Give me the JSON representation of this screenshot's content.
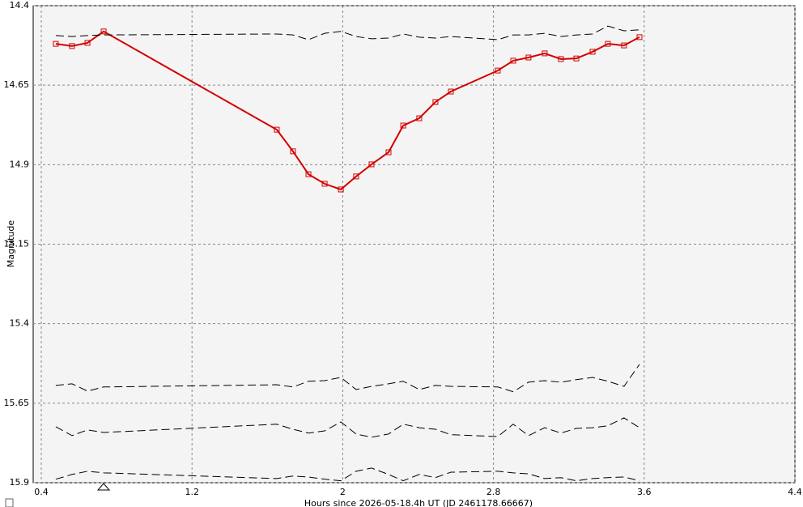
{
  "chart_data": {
    "type": "line",
    "y_label": "Magnitude",
    "x_label": "Hours since 2026-05-18.4h UT (JD 2461178.66667)",
    "x": [
      0.477,
      0.563,
      0.645,
      0.731,
      1.65,
      1.736,
      1.818,
      1.904,
      1.99,
      2.071,
      2.153,
      2.243,
      2.321,
      2.406,
      2.492,
      2.574,
      2.823,
      2.905,
      2.986,
      3.072,
      3.158,
      3.24,
      3.326,
      3.407,
      3.493,
      3.575
    ],
    "series": [
      {
        "color": "#d40000",
        "style": "solid",
        "markers": true,
        "values": [
          14.52,
          14.527,
          14.517,
          14.481,
          14.79,
          14.858,
          14.93,
          14.96,
          14.978,
          14.937,
          14.899,
          14.861,
          14.777,
          14.754,
          14.703,
          14.67,
          14.604,
          14.573,
          14.563,
          14.55,
          14.568,
          14.566,
          14.545,
          14.52,
          14.525,
          14.499
        ]
      },
      {
        "color": "#000000",
        "style": "dashed",
        "markers": false,
        "values": [
          14.494,
          14.497,
          14.494,
          14.492,
          14.489,
          14.492,
          14.507,
          14.487,
          14.481,
          14.497,
          14.504,
          14.502,
          14.489,
          14.499,
          14.502,
          14.497,
          14.507,
          14.492,
          14.492,
          14.487,
          14.497,
          14.492,
          14.489,
          14.464,
          14.479,
          14.476
        ]
      },
      {
        "color": "#000000",
        "style": "dashed",
        "markers": false,
        "values": [
          15.594,
          15.589,
          15.612,
          15.599,
          15.592,
          15.599,
          15.581,
          15.579,
          15.569,
          15.607,
          15.597,
          15.589,
          15.581,
          15.607,
          15.594,
          15.597,
          15.599,
          15.614,
          15.584,
          15.579,
          15.584,
          15.576,
          15.569,
          15.581,
          15.597,
          15.528
        ]
      },
      {
        "color": "#000000",
        "style": "dashed",
        "markers": false,
        "values": [
          15.724,
          15.752,
          15.734,
          15.742,
          15.716,
          15.732,
          15.744,
          15.737,
          15.709,
          15.747,
          15.757,
          15.747,
          15.716,
          15.727,
          15.732,
          15.749,
          15.755,
          15.716,
          15.752,
          15.727,
          15.744,
          15.729,
          15.727,
          15.721,
          15.696,
          15.727
        ]
      },
      {
        "color": "#000000",
        "style": "dashed",
        "markers": false,
        "values": [
          15.889,
          15.874,
          15.864,
          15.869,
          15.887,
          15.879,
          15.882,
          15.889,
          15.894,
          15.864,
          15.854,
          15.874,
          15.894,
          15.874,
          15.884,
          15.867,
          15.864,
          15.869,
          15.872,
          15.887,
          15.884,
          15.894,
          15.887,
          15.884,
          15.882,
          15.894
        ]
      }
    ],
    "xlim": [
      0.357,
      4.4
    ],
    "xticks": [
      0.4,
      1.2,
      2,
      2.8,
      3.6,
      4.4
    ],
    "ylim": [
      14.4,
      15.9
    ],
    "yticks": [
      14.4,
      14.65,
      14.9,
      15.15,
      15.4,
      15.65,
      15.9
    ],
    "y_inverted": true,
    "grid": true
  }
}
